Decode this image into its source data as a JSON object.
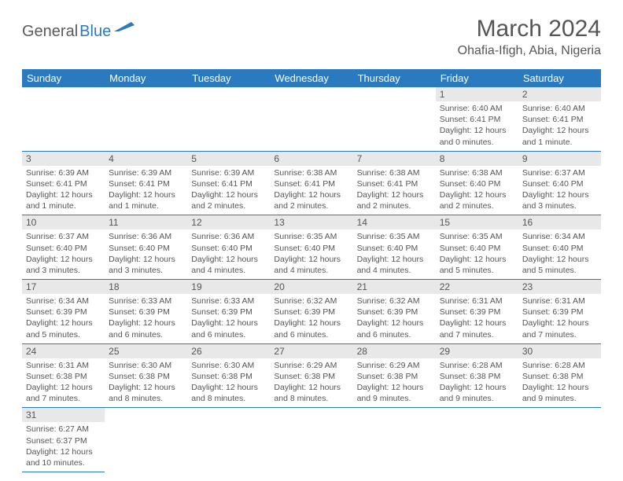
{
  "logo": {
    "text1": "General",
    "text2": "Blue"
  },
  "title": "March 2024",
  "location": "Ohafia-Ifigh, Abia, Nigeria",
  "colors": {
    "header_bg": "#2b7abf",
    "header_text": "#ffffff",
    "daynum_bg": "#e8e8e8",
    "text": "#555555",
    "logo_gray": "#5a5a5a",
    "logo_blue": "#2b7abf",
    "border": "#2b7abf",
    "page_bg": "#ffffff"
  },
  "weekdays": [
    "Sunday",
    "Monday",
    "Tuesday",
    "Wednesday",
    "Thursday",
    "Friday",
    "Saturday"
  ],
  "weeks": [
    [
      null,
      null,
      null,
      null,
      null,
      {
        "n": "1",
        "sunrise": "Sunrise: 6:40 AM",
        "sunset": "Sunset: 6:41 PM",
        "day1": "Daylight: 12 hours",
        "day2": "and 0 minutes."
      },
      {
        "n": "2",
        "sunrise": "Sunrise: 6:40 AM",
        "sunset": "Sunset: 6:41 PM",
        "day1": "Daylight: 12 hours",
        "day2": "and 1 minute."
      }
    ],
    [
      {
        "n": "3",
        "sunrise": "Sunrise: 6:39 AM",
        "sunset": "Sunset: 6:41 PM",
        "day1": "Daylight: 12 hours",
        "day2": "and 1 minute."
      },
      {
        "n": "4",
        "sunrise": "Sunrise: 6:39 AM",
        "sunset": "Sunset: 6:41 PM",
        "day1": "Daylight: 12 hours",
        "day2": "and 1 minute."
      },
      {
        "n": "5",
        "sunrise": "Sunrise: 6:39 AM",
        "sunset": "Sunset: 6:41 PM",
        "day1": "Daylight: 12 hours",
        "day2": "and 2 minutes."
      },
      {
        "n": "6",
        "sunrise": "Sunrise: 6:38 AM",
        "sunset": "Sunset: 6:41 PM",
        "day1": "Daylight: 12 hours",
        "day2": "and 2 minutes."
      },
      {
        "n": "7",
        "sunrise": "Sunrise: 6:38 AM",
        "sunset": "Sunset: 6:41 PM",
        "day1": "Daylight: 12 hours",
        "day2": "and 2 minutes."
      },
      {
        "n": "8",
        "sunrise": "Sunrise: 6:38 AM",
        "sunset": "Sunset: 6:40 PM",
        "day1": "Daylight: 12 hours",
        "day2": "and 2 minutes."
      },
      {
        "n": "9",
        "sunrise": "Sunrise: 6:37 AM",
        "sunset": "Sunset: 6:40 PM",
        "day1": "Daylight: 12 hours",
        "day2": "and 3 minutes."
      }
    ],
    [
      {
        "n": "10",
        "sunrise": "Sunrise: 6:37 AM",
        "sunset": "Sunset: 6:40 PM",
        "day1": "Daylight: 12 hours",
        "day2": "and 3 minutes."
      },
      {
        "n": "11",
        "sunrise": "Sunrise: 6:36 AM",
        "sunset": "Sunset: 6:40 PM",
        "day1": "Daylight: 12 hours",
        "day2": "and 3 minutes."
      },
      {
        "n": "12",
        "sunrise": "Sunrise: 6:36 AM",
        "sunset": "Sunset: 6:40 PM",
        "day1": "Daylight: 12 hours",
        "day2": "and 4 minutes."
      },
      {
        "n": "13",
        "sunrise": "Sunrise: 6:35 AM",
        "sunset": "Sunset: 6:40 PM",
        "day1": "Daylight: 12 hours",
        "day2": "and 4 minutes."
      },
      {
        "n": "14",
        "sunrise": "Sunrise: 6:35 AM",
        "sunset": "Sunset: 6:40 PM",
        "day1": "Daylight: 12 hours",
        "day2": "and 4 minutes."
      },
      {
        "n": "15",
        "sunrise": "Sunrise: 6:35 AM",
        "sunset": "Sunset: 6:40 PM",
        "day1": "Daylight: 12 hours",
        "day2": "and 5 minutes."
      },
      {
        "n": "16",
        "sunrise": "Sunrise: 6:34 AM",
        "sunset": "Sunset: 6:40 PM",
        "day1": "Daylight: 12 hours",
        "day2": "and 5 minutes."
      }
    ],
    [
      {
        "n": "17",
        "sunrise": "Sunrise: 6:34 AM",
        "sunset": "Sunset: 6:39 PM",
        "day1": "Daylight: 12 hours",
        "day2": "and 5 minutes."
      },
      {
        "n": "18",
        "sunrise": "Sunrise: 6:33 AM",
        "sunset": "Sunset: 6:39 PM",
        "day1": "Daylight: 12 hours",
        "day2": "and 6 minutes."
      },
      {
        "n": "19",
        "sunrise": "Sunrise: 6:33 AM",
        "sunset": "Sunset: 6:39 PM",
        "day1": "Daylight: 12 hours",
        "day2": "and 6 minutes."
      },
      {
        "n": "20",
        "sunrise": "Sunrise: 6:32 AM",
        "sunset": "Sunset: 6:39 PM",
        "day1": "Daylight: 12 hours",
        "day2": "and 6 minutes."
      },
      {
        "n": "21",
        "sunrise": "Sunrise: 6:32 AM",
        "sunset": "Sunset: 6:39 PM",
        "day1": "Daylight: 12 hours",
        "day2": "and 6 minutes."
      },
      {
        "n": "22",
        "sunrise": "Sunrise: 6:31 AM",
        "sunset": "Sunset: 6:39 PM",
        "day1": "Daylight: 12 hours",
        "day2": "and 7 minutes."
      },
      {
        "n": "23",
        "sunrise": "Sunrise: 6:31 AM",
        "sunset": "Sunset: 6:39 PM",
        "day1": "Daylight: 12 hours",
        "day2": "and 7 minutes."
      }
    ],
    [
      {
        "n": "24",
        "sunrise": "Sunrise: 6:31 AM",
        "sunset": "Sunset: 6:38 PM",
        "day1": "Daylight: 12 hours",
        "day2": "and 7 minutes."
      },
      {
        "n": "25",
        "sunrise": "Sunrise: 6:30 AM",
        "sunset": "Sunset: 6:38 PM",
        "day1": "Daylight: 12 hours",
        "day2": "and 8 minutes."
      },
      {
        "n": "26",
        "sunrise": "Sunrise: 6:30 AM",
        "sunset": "Sunset: 6:38 PM",
        "day1": "Daylight: 12 hours",
        "day2": "and 8 minutes."
      },
      {
        "n": "27",
        "sunrise": "Sunrise: 6:29 AM",
        "sunset": "Sunset: 6:38 PM",
        "day1": "Daylight: 12 hours",
        "day2": "and 8 minutes."
      },
      {
        "n": "28",
        "sunrise": "Sunrise: 6:29 AM",
        "sunset": "Sunset: 6:38 PM",
        "day1": "Daylight: 12 hours",
        "day2": "and 9 minutes."
      },
      {
        "n": "29",
        "sunrise": "Sunrise: 6:28 AM",
        "sunset": "Sunset: 6:38 PM",
        "day1": "Daylight: 12 hours",
        "day2": "and 9 minutes."
      },
      {
        "n": "30",
        "sunrise": "Sunrise: 6:28 AM",
        "sunset": "Sunset: 6:38 PM",
        "day1": "Daylight: 12 hours",
        "day2": "and 9 minutes."
      }
    ],
    [
      {
        "n": "31",
        "sunrise": "Sunrise: 6:27 AM",
        "sunset": "Sunset: 6:37 PM",
        "day1": "Daylight: 12 hours",
        "day2": "and 10 minutes."
      },
      null,
      null,
      null,
      null,
      null,
      null
    ]
  ]
}
